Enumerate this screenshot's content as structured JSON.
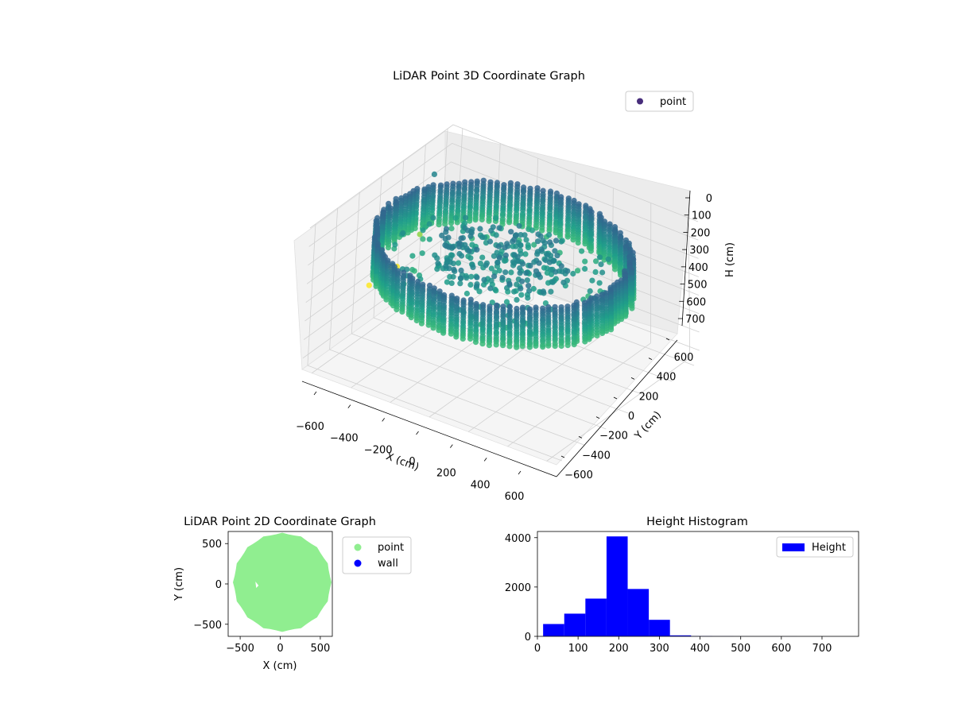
{
  "chart_data": [
    {
      "type": "scatter",
      "projection": "3d",
      "title": "LiDAR Point 3D Coordinate Graph",
      "xlabel": "X (cm)",
      "ylabel": "Y (cm)",
      "zlabel": "H (cm)",
      "xticks": [
        "−600",
        "−400",
        "−200",
        "0",
        "200",
        "400",
        "600"
      ],
      "yticks": [
        "−600",
        "−400",
        "−200",
        "0",
        "200",
        "400",
        "600"
      ],
      "zticks": [
        "0",
        "100",
        "200",
        "300",
        "400",
        "500",
        "600",
        "700"
      ],
      "xlim": [
        -650,
        650
      ],
      "ylim": [
        -650,
        650
      ],
      "zlim": [
        760,
        0
      ],
      "z_inverted": true,
      "legend": {
        "position": "top-right",
        "entries": [
          {
            "label": "point",
            "color": "#472d7b"
          }
        ]
      },
      "colormap": "viridis",
      "grid": true,
      "series": [
        {
          "name": "point",
          "description_kind": "ring wall of points around origin plus central cluster",
          "ring": {
            "radius": 580,
            "h_range": [
              110,
              330
            ]
          },
          "center": {
            "radius": 320,
            "h_range": [
              150,
              260
            ]
          },
          "outliers": [
            {
              "x": -640,
              "y": 480,
              "h": 190
            },
            {
              "x": -600,
              "y": 300,
              "h": 420
            },
            {
              "x": -610,
              "y": 120,
              "h": 520
            },
            {
              "x": -650,
              "y": -60,
              "h": 560
            },
            {
              "x": -620,
              "y": 80,
              "h": 510
            }
          ]
        }
      ]
    },
    {
      "type": "scatter",
      "title": "LiDAR Point 2D Coordinate Graph",
      "xlabel": "X (cm)",
      "ylabel": "Y (cm)",
      "xticks": [
        "−500",
        "0",
        "500"
      ],
      "yticks": [
        "−500",
        "0",
        "500"
      ],
      "xlim": [
        -650,
        650
      ],
      "ylim": [
        -650,
        650
      ],
      "legend": {
        "position": "outside-right",
        "entries": [
          {
            "label": "point",
            "color": "#90ee90"
          },
          {
            "label": "wall",
            "color": "#0000ff"
          }
        ]
      },
      "region": {
        "radius": 600,
        "color": "#90ee90"
      }
    },
    {
      "type": "bar",
      "title": "Height Histogram",
      "xlabel": "",
      "ylabel": "",
      "xticks": [
        "0",
        "100",
        "200",
        "300",
        "400",
        "500",
        "600",
        "700"
      ],
      "yticks": [
        "0",
        "2000",
        "4000"
      ],
      "xlim": [
        0,
        790
      ],
      "ylim": [
        0,
        4250
      ],
      "legend": {
        "position": "top-right",
        "entries": [
          {
            "label": "Height",
            "color": "#0000ff"
          }
        ]
      },
      "bin_edges": [
        14,
        66,
        118,
        170,
        222,
        274,
        326,
        378,
        430,
        482,
        534,
        586,
        638,
        690,
        742
      ],
      "values": [
        500,
        920,
        1530,
        4050,
        1920,
        670,
        40,
        10,
        5,
        3,
        2,
        2,
        1,
        1
      ],
      "color": "#0000ff"
    }
  ]
}
